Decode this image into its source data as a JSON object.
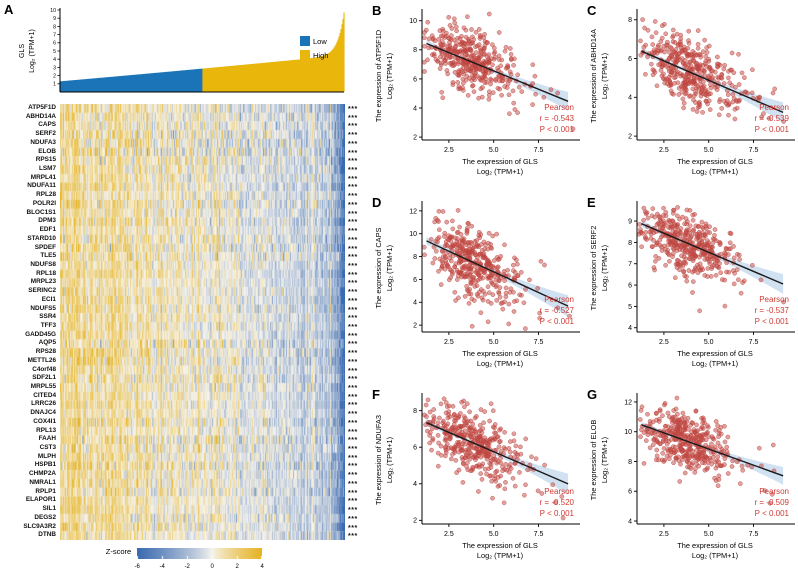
{
  "chart_data": {
    "waterfall": {
      "type": "area",
      "panel_label": "A",
      "ylabel_line1": "GLS",
      "ylabel_line2": "Log₂ (TPM+1)",
      "ylim": [
        0,
        10
      ],
      "yticks": [
        1,
        2,
        3,
        4,
        5,
        6,
        7,
        8,
        9,
        10
      ],
      "n_samples": 285,
      "groups": [
        {
          "label": "Low",
          "color": "#1b74b8"
        },
        {
          "label": "High",
          "color": "#e9b60b"
        }
      ]
    },
    "heatmap": {
      "type": "heatmap",
      "genes": [
        "ATP5F1D",
        "ABHD14A",
        "CAPS",
        "SERF2",
        "NDUFA3",
        "ELOB",
        "RPS15",
        "LSM7",
        "MRPL41",
        "NDUFA11",
        "RPL28",
        "POLR2I",
        "BLOC1S1",
        "DPM3",
        "EDF1",
        "STARD10",
        "SPDEF",
        "TLE5",
        "NDUFS8",
        "RPL18",
        "MRPL23",
        "SERINC2",
        "ECI1",
        "NDUFS5",
        "SSR4",
        "TFF3",
        "GADD45G",
        "AQP5",
        "RPS28",
        "METTL26",
        "C4orf48",
        "SDF2L1",
        "MRPL55",
        "CITED4",
        "LRRC26",
        "DNAJC4",
        "COX4I1",
        "RPL13",
        "FAAH",
        "CST3",
        "MLPH",
        "HSPB1",
        "CHMP2A",
        "NMRAL1",
        "RPLP1",
        "ELAPOR1",
        "SIL1",
        "DEGS2",
        "SLC9A3R2",
        "DTNB"
      ],
      "significance_label": "***",
      "colorbar": {
        "label": "Z-score",
        "ticks": [
          -6,
          -4,
          -2,
          0,
          2,
          4
        ],
        "min": -6,
        "max": 4,
        "color_low": "#3a6ab1",
        "color_mid": "#f7f5f0",
        "color_high": "#e6b422"
      }
    },
    "scatters": [
      {
        "type": "scatter",
        "panel_label": "B",
        "gene": "ATP5F1D",
        "ylabel_line1": "The expression of ATP5F1D",
        "ylabel_line2": "Log₂ (TPM+1)",
        "xlabel_line1": "The expression of GLS",
        "xlabel_line2": "Log₂ (TPM+1)",
        "xtick_labels": [
          "2.5",
          "5.0",
          "7.5"
        ],
        "xtick_values": [
          2.5,
          5.0,
          7.5
        ],
        "yticks": [
          2,
          4,
          6,
          8,
          10
        ],
        "xlim": [
          1.0,
          9.7
        ],
        "ylim": [
          1.8,
          10.6
        ],
        "pearson": {
          "label": "Pearson",
          "r_text": "r = -0.543",
          "p_text": "P < 0.001",
          "r": -0.543
        },
        "sim": {
          "mx": 3.7,
          "sx": 1.35,
          "my": 7.2,
          "sy": 1.25,
          "n": 400
        }
      },
      {
        "type": "scatter",
        "panel_label": "C",
        "gene": "ABHD14A",
        "ylabel_line1": "The expression of ABHD14A",
        "ylabel_line2": "Log₂ (TPM+1)",
        "xlabel_line1": "The expression of GLS",
        "xlabel_line2": "Log₂ (TPM+1)",
        "xtick_labels": [
          "2.5",
          "5.0",
          "7.5"
        ],
        "xtick_values": [
          2.5,
          5.0,
          7.5
        ],
        "yticks": [
          2,
          4,
          6,
          8
        ],
        "xlim": [
          1.0,
          9.7
        ],
        "ylim": [
          1.8,
          8.4
        ],
        "pearson": {
          "label": "Pearson",
          "r_text": "r = -0.539",
          "p_text": "P < 0.001",
          "r": -0.539
        },
        "sim": {
          "mx": 3.7,
          "sx": 1.35,
          "my": 5.4,
          "sy": 1.0,
          "n": 400
        }
      },
      {
        "type": "scatter",
        "panel_label": "D",
        "gene": "CAPS",
        "ylabel_line1": "The expression of CAPS",
        "ylabel_line2": "Log₂ (TPM+1)",
        "xlabel_line1": "The expression of GLS",
        "xlabel_line2": "Log₂ (TPM+1)",
        "xtick_labels": [
          "2.5",
          "5.0",
          "7.5"
        ],
        "xtick_values": [
          2.5,
          5.0,
          7.5
        ],
        "yticks": [
          2,
          4,
          6,
          8,
          10,
          12
        ],
        "xlim": [
          1.0,
          9.7
        ],
        "ylim": [
          1.4,
          12.6
        ],
        "pearson": {
          "label": "Pearson",
          "r_text": "r = -0.527",
          "p_text": "P < 0.001",
          "r": -0.527
        },
        "sim": {
          "mx": 3.7,
          "sx": 1.35,
          "my": 7.6,
          "sy": 1.85,
          "n": 400
        }
      },
      {
        "type": "scatter",
        "panel_label": "E",
        "gene": "SERF2",
        "ylabel_line1": "The expression of SERF2",
        "ylabel_line2": "Log₂ (TPM+1)",
        "xlabel_line1": "The expression of GLS",
        "xlabel_line2": "Log₂ (TPM+1)",
        "xtick_labels": [
          "2.5",
          "5.0",
          "7.5"
        ],
        "xtick_values": [
          2.5,
          5.0,
          7.5
        ],
        "yticks": [
          4,
          5,
          6,
          7,
          8,
          9
        ],
        "xlim": [
          1.0,
          9.7
        ],
        "ylim": [
          3.8,
          9.8
        ],
        "pearson": {
          "label": "Pearson",
          "r_text": "r = -0.537",
          "p_text": "P < 0.001",
          "r": -0.537
        },
        "sim": {
          "mx": 3.7,
          "sx": 1.35,
          "my": 8.0,
          "sy": 0.9,
          "n": 400
        }
      },
      {
        "type": "scatter",
        "panel_label": "F",
        "gene": "NDUFA3",
        "ylabel_line1": "The expression of NDUFA3",
        "ylabel_line2": "Log₂ (TPM+1)",
        "xlabel_line1": "The expression of GLS",
        "xlabel_line2": "Log₂ (TPM+1)",
        "xtick_labels": [
          "2.5",
          "5.0",
          "7.5"
        ],
        "xtick_values": [
          2.5,
          5.0,
          7.5
        ],
        "yticks": [
          2,
          4,
          6,
          8
        ],
        "xlim": [
          1.0,
          9.7
        ],
        "ylim": [
          1.8,
          8.8
        ],
        "pearson": {
          "label": "Pearson",
          "r_text": "r = -0.520",
          "p_text": "P < 0.001",
          "r": -0.52
        },
        "sim": {
          "mx": 3.7,
          "sx": 1.35,
          "my": 6.3,
          "sy": 1.1,
          "n": 400
        }
      },
      {
        "type": "scatter",
        "panel_label": "G",
        "gene": "ELOB",
        "ylabel_line1": "The expression of ELOB",
        "ylabel_line2": "Log₂ (TPM+1)",
        "xlabel_line1": "The expression of GLS",
        "xlabel_line2": "Log₂ (TPM+1)",
        "xtick_labels": [
          "2.5",
          "5.0",
          "7.5"
        ],
        "xtick_values": [
          2.5,
          5.0,
          7.5
        ],
        "yticks": [
          4,
          6,
          8,
          10,
          12
        ],
        "xlim": [
          1.0,
          9.7
        ],
        "ylim": [
          3.8,
          12.4
        ],
        "pearson": {
          "label": "Pearson",
          "r_text": "r = -0.509",
          "p_text": "P < 0.001",
          "r": -0.509
        },
        "sim": {
          "mx": 3.7,
          "sx": 1.35,
          "my": 9.4,
          "sy": 1.15,
          "n": 400
        }
      }
    ],
    "style": {
      "point_color": "#bf4540",
      "line_color": "#1a1a1a",
      "band_color": "#a9c9e8",
      "pearson_color": "#d03a34",
      "axis_color": "#000000"
    }
  }
}
